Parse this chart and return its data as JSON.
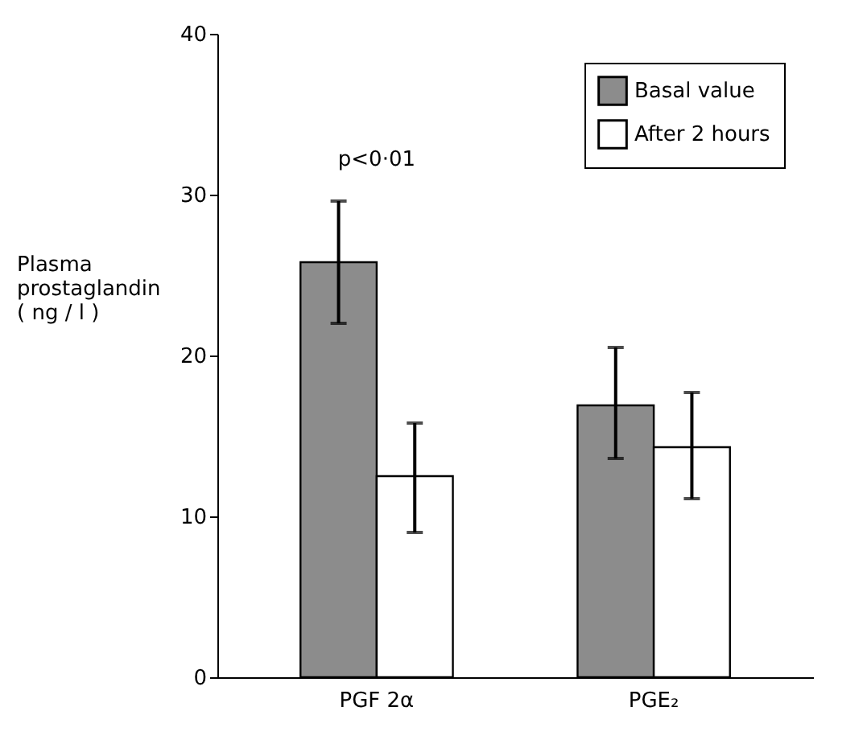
{
  "chart_data": {
    "type": "bar",
    "ylabel": "Plasma\nprostaglandin\n( ng / l )",
    "categories": [
      "PGF 2α",
      "PGE₂"
    ],
    "series": [
      {
        "name": "Basal value",
        "color": "#8c8c8c",
        "values": [
          25.8,
          16.9
        ],
        "errors": [
          [
            22.0,
            29.6
          ],
          [
            13.6,
            20.5
          ]
        ]
      },
      {
        "name": "After 2 hours",
        "color": "#ffffff",
        "values": [
          12.5,
          14.3
        ],
        "errors": [
          [
            9.0,
            15.8
          ],
          [
            11.1,
            17.7
          ]
        ]
      }
    ],
    "annotations": [
      "p<0·01"
    ],
    "ylim": [
      0,
      40
    ],
    "yticks": [
      0,
      10,
      20,
      30,
      40
    ],
    "grid": false,
    "legend": "top right"
  }
}
